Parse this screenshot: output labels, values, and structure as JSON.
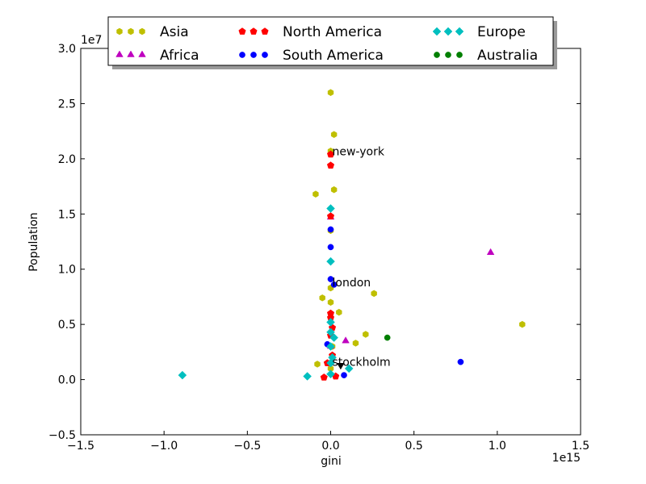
{
  "chart_data": {
    "type": "scatter",
    "xlabel": "gini",
    "ylabel": "Population",
    "x_offset_text": "1e15",
    "y_offset_text": "1e7",
    "xlim": [
      -1.5,
      1.5
    ],
    "ylim": [
      -0.5,
      3.0
    ],
    "xticks": [
      -1.5,
      -1.0,
      -0.5,
      0.0,
      0.5,
      1.0,
      1.5
    ],
    "yticks": [
      -0.5,
      0.0,
      0.5,
      1.0,
      1.5,
      2.0,
      2.5,
      3.0
    ],
    "xtick_labels": [
      "−1.5",
      "−1.0",
      "−0.5",
      "0.0",
      "0.5",
      "1.0",
      "1.5"
    ],
    "ytick_labels": [
      "−0.5",
      "0.0",
      "0.5",
      "1.0",
      "1.5",
      "2.0",
      "2.5",
      "3.0"
    ],
    "grid": false,
    "legend_position": "top",
    "series": [
      {
        "name": "Asia",
        "color": "#bfbf00",
        "marker": "hexagon",
        "x": [
          0.0,
          0.02,
          0.0,
          0.02,
          -0.09,
          0.0,
          0.0,
          -0.05,
          0.0,
          0.05,
          0.26,
          0.21,
          0.15,
          1.15,
          -0.08,
          0.01,
          0.0
        ],
        "y": [
          2.6,
          2.22,
          2.07,
          1.72,
          1.68,
          1.35,
          0.83,
          0.74,
          0.7,
          0.61,
          0.78,
          0.41,
          0.33,
          0.5,
          0.14,
          0.3,
          0.1
        ]
      },
      {
        "name": "Africa",
        "color": "#bf00bf",
        "marker": "triangle",
        "x": [
          0.96,
          0.09,
          0.0,
          0.0
        ],
        "y": [
          1.15,
          0.35,
          1.47,
          0.3
        ]
      },
      {
        "name": "North America",
        "color": "#ff0000",
        "marker": "pentagon",
        "x": [
          0.0,
          0.0,
          0.0,
          0.0,
          0.0,
          0.01,
          0.0,
          0.01,
          -0.02,
          -0.04,
          0.03
        ],
        "y": [
          2.04,
          1.94,
          1.48,
          0.6,
          0.56,
          0.47,
          0.4,
          0.22,
          0.15,
          0.02,
          0.03
        ]
      },
      {
        "name": "South America",
        "color": "#0000ff",
        "marker": "circle",
        "x": [
          0.0,
          0.0,
          0.0,
          0.78,
          0.08,
          -0.02,
          0.02
        ],
        "y": [
          1.36,
          1.2,
          0.91,
          0.16,
          0.04,
          0.32,
          0.86
        ]
      },
      {
        "name": "Europe",
        "color": "#00bfbf",
        "marker": "diamond",
        "x": [
          0.0,
          0.0,
          -0.89,
          -0.14,
          0.11,
          0.0,
          0.0,
          0.02,
          0.0,
          0.01,
          0.0,
          0.0
        ],
        "y": [
          1.55,
          1.07,
          0.04,
          0.03,
          0.1,
          0.52,
          0.43,
          0.38,
          0.3,
          0.2,
          0.15,
          0.05
        ]
      },
      {
        "name": "Australia",
        "color": "#007f00",
        "marker": "circle",
        "x": [
          0.34
        ],
        "y": [
          0.38
        ]
      }
    ],
    "annotations": [
      {
        "text": "new-york",
        "x": 0.0,
        "y": 2.07
      },
      {
        "text": "london",
        "x": 0.0,
        "y": 0.88
      },
      {
        "text": "stockholm",
        "x": 0.0,
        "y": 0.16
      }
    ],
    "highlight_marker": {
      "x": 0.06,
      "y": 0.13,
      "color": "#000000",
      "marker": "triangle-down"
    }
  }
}
